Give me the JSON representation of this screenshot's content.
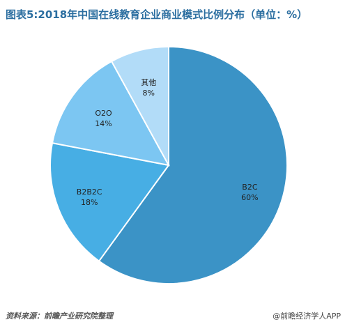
{
  "title": "图表5:2018年中国在线教育企业商业模式比例分布（单位：%）",
  "source": "资料来源：前瞻产业研究院整理",
  "credit": "@前瞻经济学人APP",
  "chart_data": {
    "type": "pie",
    "unit": "%",
    "slices": [
      {
        "label": "B2C",
        "value": 60,
        "value_label": "60%",
        "color": "#3b93c6"
      },
      {
        "label": "B2B2C",
        "value": 18,
        "value_label": "18%",
        "color": "#47aee4"
      },
      {
        "label": "O2O",
        "value": 14,
        "value_label": "14%",
        "color": "#7cc6f2"
      },
      {
        "label": "其他",
        "value": 8,
        "value_label": "8%",
        "color": "#b2dcf8"
      }
    ]
  }
}
